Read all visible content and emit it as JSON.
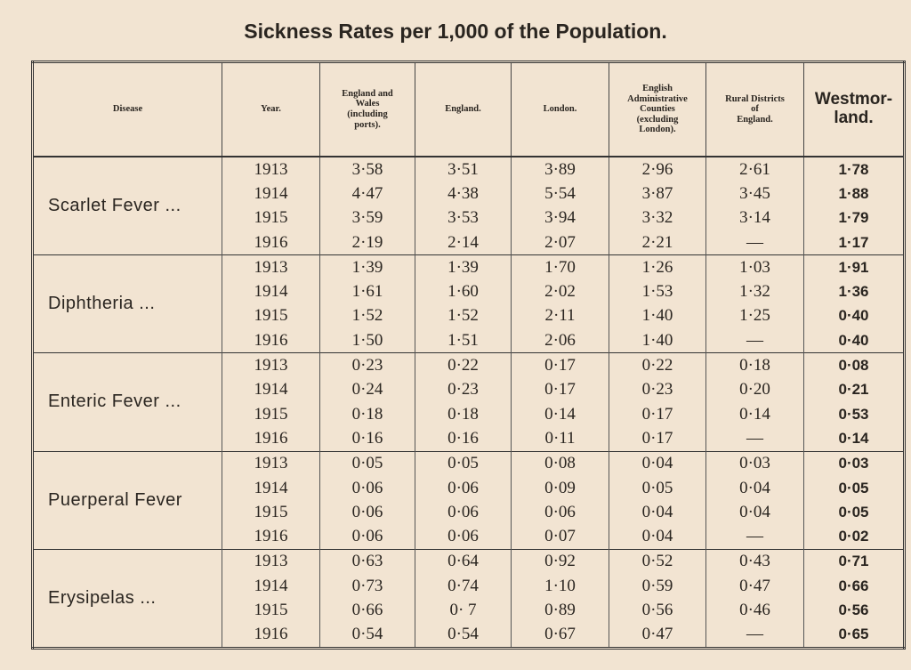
{
  "title": "Sickness Rates per 1,000 of the Population.",
  "headers": [
    "Disease",
    "Year.",
    "England and\nWales\n(including\nports).",
    "England.",
    "London.",
    "English\nAdministrative\nCounties\n(excluding\nLondon).",
    "Rural Districts\nof\nEngland.",
    "Westmor-\nland."
  ],
  "groups": [
    {
      "disease": "Scarlet Fever ...",
      "rows": [
        [
          "1913",
          "3·58",
          "3·51",
          "3·89",
          "2·96",
          "2·61",
          "1·78"
        ],
        [
          "1914",
          "4·47",
          "4·38",
          "5·54",
          "3·87",
          "3·45",
          "1·88"
        ],
        [
          "1915",
          "3·59",
          "3·53",
          "3·94",
          "3·32",
          "3·14",
          "1·79"
        ],
        [
          "1916",
          "2·19",
          "2·14",
          "2·07",
          "2·21",
          "—",
          "1·17"
        ]
      ]
    },
    {
      "disease": "Diphtheria ...",
      "rows": [
        [
          "1913",
          "1·39",
          "1·39",
          "1·70",
          "1·26",
          "1·03",
          "1·91"
        ],
        [
          "1914",
          "1·61",
          "1·60",
          "2·02",
          "1·53",
          "1·32",
          "1·36"
        ],
        [
          "1915",
          "1·52",
          "1·52",
          "2·11",
          "1·40",
          "1·25",
          "0·40"
        ],
        [
          "1916",
          "1·50",
          "1·51",
          "2·06",
          "1·40",
          "—",
          "0·40"
        ]
      ]
    },
    {
      "disease": "Enteric Fever ...",
      "rows": [
        [
          "1913",
          "0·23",
          "0·22",
          "0·17",
          "0·22",
          "0·18",
          "0·08"
        ],
        [
          "1914",
          "0·24",
          "0·23",
          "0·17",
          "0·23",
          "0·20",
          "0·21"
        ],
        [
          "1915",
          "0·18",
          "0·18",
          "0·14",
          "0·17",
          "0·14",
          "0·53"
        ],
        [
          "1916",
          "0·16",
          "0·16",
          "0·11",
          "0·17",
          "—",
          "0·14"
        ]
      ]
    },
    {
      "disease": "Puerperal Fever",
      "rows": [
        [
          "1913",
          "0·05",
          "0·05",
          "0·08",
          "0·04",
          "0·03",
          "0·03"
        ],
        [
          "1914",
          "0·06",
          "0·06",
          "0·09",
          "0·05",
          "0·04",
          "0·05"
        ],
        [
          "1915",
          "0·06",
          "0·06",
          "0·06",
          "0·04",
          "0·04",
          "0·05"
        ],
        [
          "1916",
          "0·06",
          "0·06",
          "0·07",
          "0·04",
          "—",
          "0·02"
        ]
      ]
    },
    {
      "disease": "Erysipelas ...",
      "rows": [
        [
          "1913",
          "0·63",
          "0·64",
          "0·92",
          "0·52",
          "0·43",
          "0·71"
        ],
        [
          "1914",
          "0·73",
          "0·74",
          "1·10",
          "0·59",
          "0·47",
          "0·66"
        ],
        [
          "1915",
          "0·66",
          "0· 7",
          "0·89",
          "0·56",
          "0·46",
          "0·56"
        ],
        [
          "1916",
          "0·54",
          "0·54",
          "0·67",
          "0·47",
          "—",
          "0·65"
        ]
      ]
    }
  ]
}
